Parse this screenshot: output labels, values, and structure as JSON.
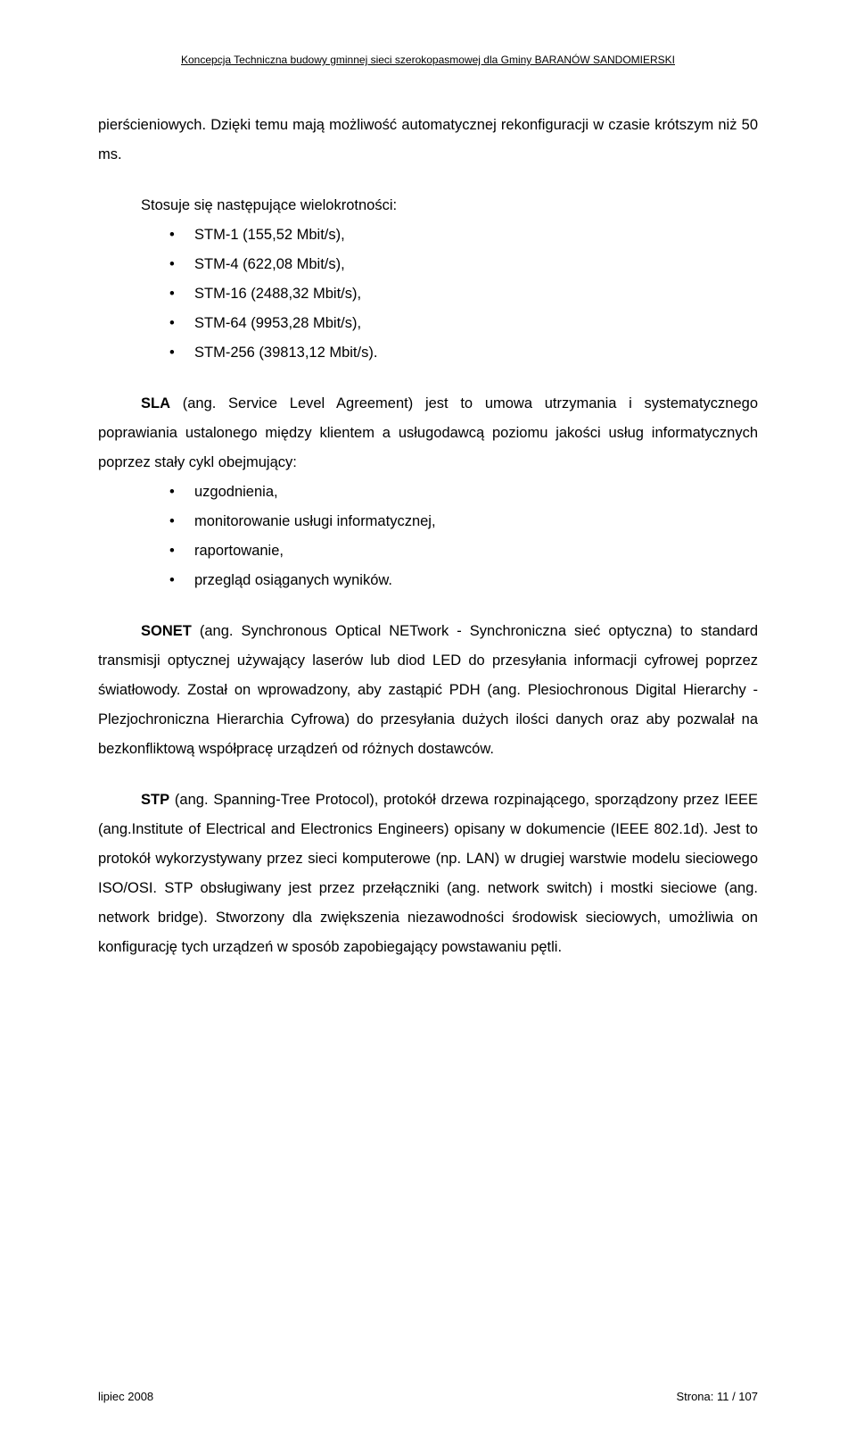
{
  "header": {
    "text": "Koncepcja Techniczna budowy gminnej sieci szerokopasmowej dla Gminy BARANÓW SANDOMIERSKI"
  },
  "intro_paragraph": "pierścieniowych. Dzięki temu mają możliwość automatycznej rekonfiguracji w czasie krótszym niż 50 ms.",
  "stm_intro": "Stosuje się następujące wielokrotności:",
  "stm_list": [
    "STM-1     (155,52 Mbit/s),",
    "STM-4     (622,08 Mbit/s),",
    "STM-16   (2488,32 Mbit/s),",
    "STM-64   (9953,28 Mbit/s),",
    "STM-256 (39813,12 Mbit/s)."
  ],
  "sla": {
    "bold": "SLA",
    "text": " (ang. Service Level Agreement) jest to umowa utrzymania i systematycznego poprawiania ustalonego między klientem a usługodawcą poziomu jakości usług informatycznych poprzez stały cykl obejmujący:"
  },
  "sla_list": [
    "uzgodnienia,",
    "monitorowanie usługi informatycznej,",
    "raportowanie,",
    "przegląd osiąganych wyników."
  ],
  "sonet": {
    "bold": "SONET",
    "text": " (ang. Synchronous Optical NETwork - Synchroniczna sieć optyczna) to standard transmisji optycznej używający laserów lub diod LED do przesyłania informacji cyfrowej poprzez światłowody. Został on wprowadzony, aby zastąpić PDH (ang. Plesiochronous Digital Hierarchy - Plezjochroniczna Hierarchia Cyfrowa) do przesyłania dużych ilości danych oraz aby pozwalał na bezkonfliktową współpracę urządzeń od różnych dostawców."
  },
  "stp": {
    "bold": "STP",
    "text": " (ang. Spanning-Tree Protocol), protokół drzewa rozpinającego, sporządzony przez IEEE (ang.Institute of Electrical and Electronics Engineers) opisany w dokumencie (IEEE 802.1d). Jest to protokół wykorzystywany przez sieci komputerowe (np. LAN) w drugiej warstwie modelu sieciowego ISO/OSI. STP obsługiwany jest przez przełączniki (ang. network switch) i mostki sieciowe (ang. network bridge). Stworzony dla zwiększenia niezawodności środowisk sieciowych, umożliwia on konfigurację tych urządzeń w sposób zapobiegający powstawaniu pętli."
  },
  "footer": {
    "left": "lipiec 2008",
    "right": "Strona: 11 / 107"
  }
}
